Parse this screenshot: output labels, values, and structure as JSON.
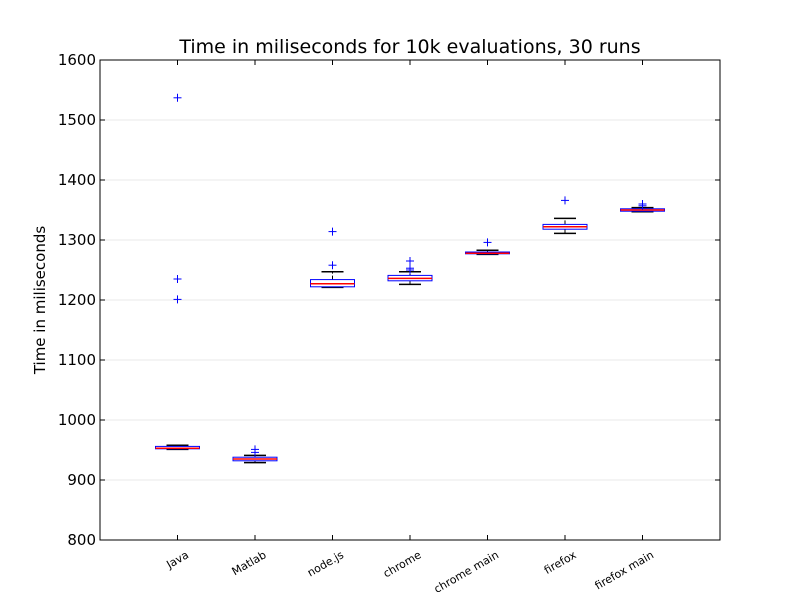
{
  "chart_data": {
    "type": "box",
    "title": "Time in miliseconds for 10k evaluations, 30 runs",
    "xlabel": "",
    "ylabel": "Time in miliseconds",
    "ylim": [
      800,
      1600
    ],
    "yticks": [
      800,
      900,
      1000,
      1100,
      1200,
      1300,
      1400,
      1500,
      1600
    ],
    "grid": "horizontal",
    "categories": [
      "Java",
      "Matlab",
      "node.js",
      "chrome",
      "chrome main",
      "firefox",
      "firefox main"
    ],
    "boxes": [
      {
        "label": "Java",
        "whislo": 951,
        "q1": 952,
        "med": 953,
        "q3": 956,
        "whishi": 958,
        "fliers": [
          1537,
          1235,
          1201
        ]
      },
      {
        "label": "Matlab",
        "whislo": 929,
        "q1": 932,
        "med": 935,
        "q3": 938,
        "whishi": 941,
        "fliers": [
          946,
          951
        ]
      },
      {
        "label": "node.js",
        "whislo": 1221,
        "q1": 1222,
        "med": 1227,
        "q3": 1234,
        "whishi": 1247,
        "fliers": [
          1258,
          1314
        ]
      },
      {
        "label": "chrome",
        "whislo": 1226,
        "q1": 1232,
        "med": 1236,
        "q3": 1241,
        "whishi": 1247,
        "fliers": [
          1250,
          1253,
          1265
        ]
      },
      {
        "label": "chrome main",
        "whislo": 1276,
        "q1": 1277,
        "med": 1278,
        "q3": 1280,
        "whishi": 1283,
        "fliers": [
          1296
        ]
      },
      {
        "label": "firefox",
        "whislo": 1311,
        "q1": 1318,
        "med": 1322,
        "q3": 1326,
        "whishi": 1336,
        "fliers": [
          1366
        ]
      },
      {
        "label": "firefox main",
        "whislo": 1347,
        "q1": 1348,
        "med": 1350,
        "q3": 1352,
        "whishi": 1354,
        "fliers": [
          1357,
          1360
        ]
      }
    ],
    "colors": {
      "box": "#0000ff",
      "median": "#ff0000",
      "whisker": "#000000",
      "flier": "#0000ff",
      "grid": "#e8e8e8"
    }
  }
}
